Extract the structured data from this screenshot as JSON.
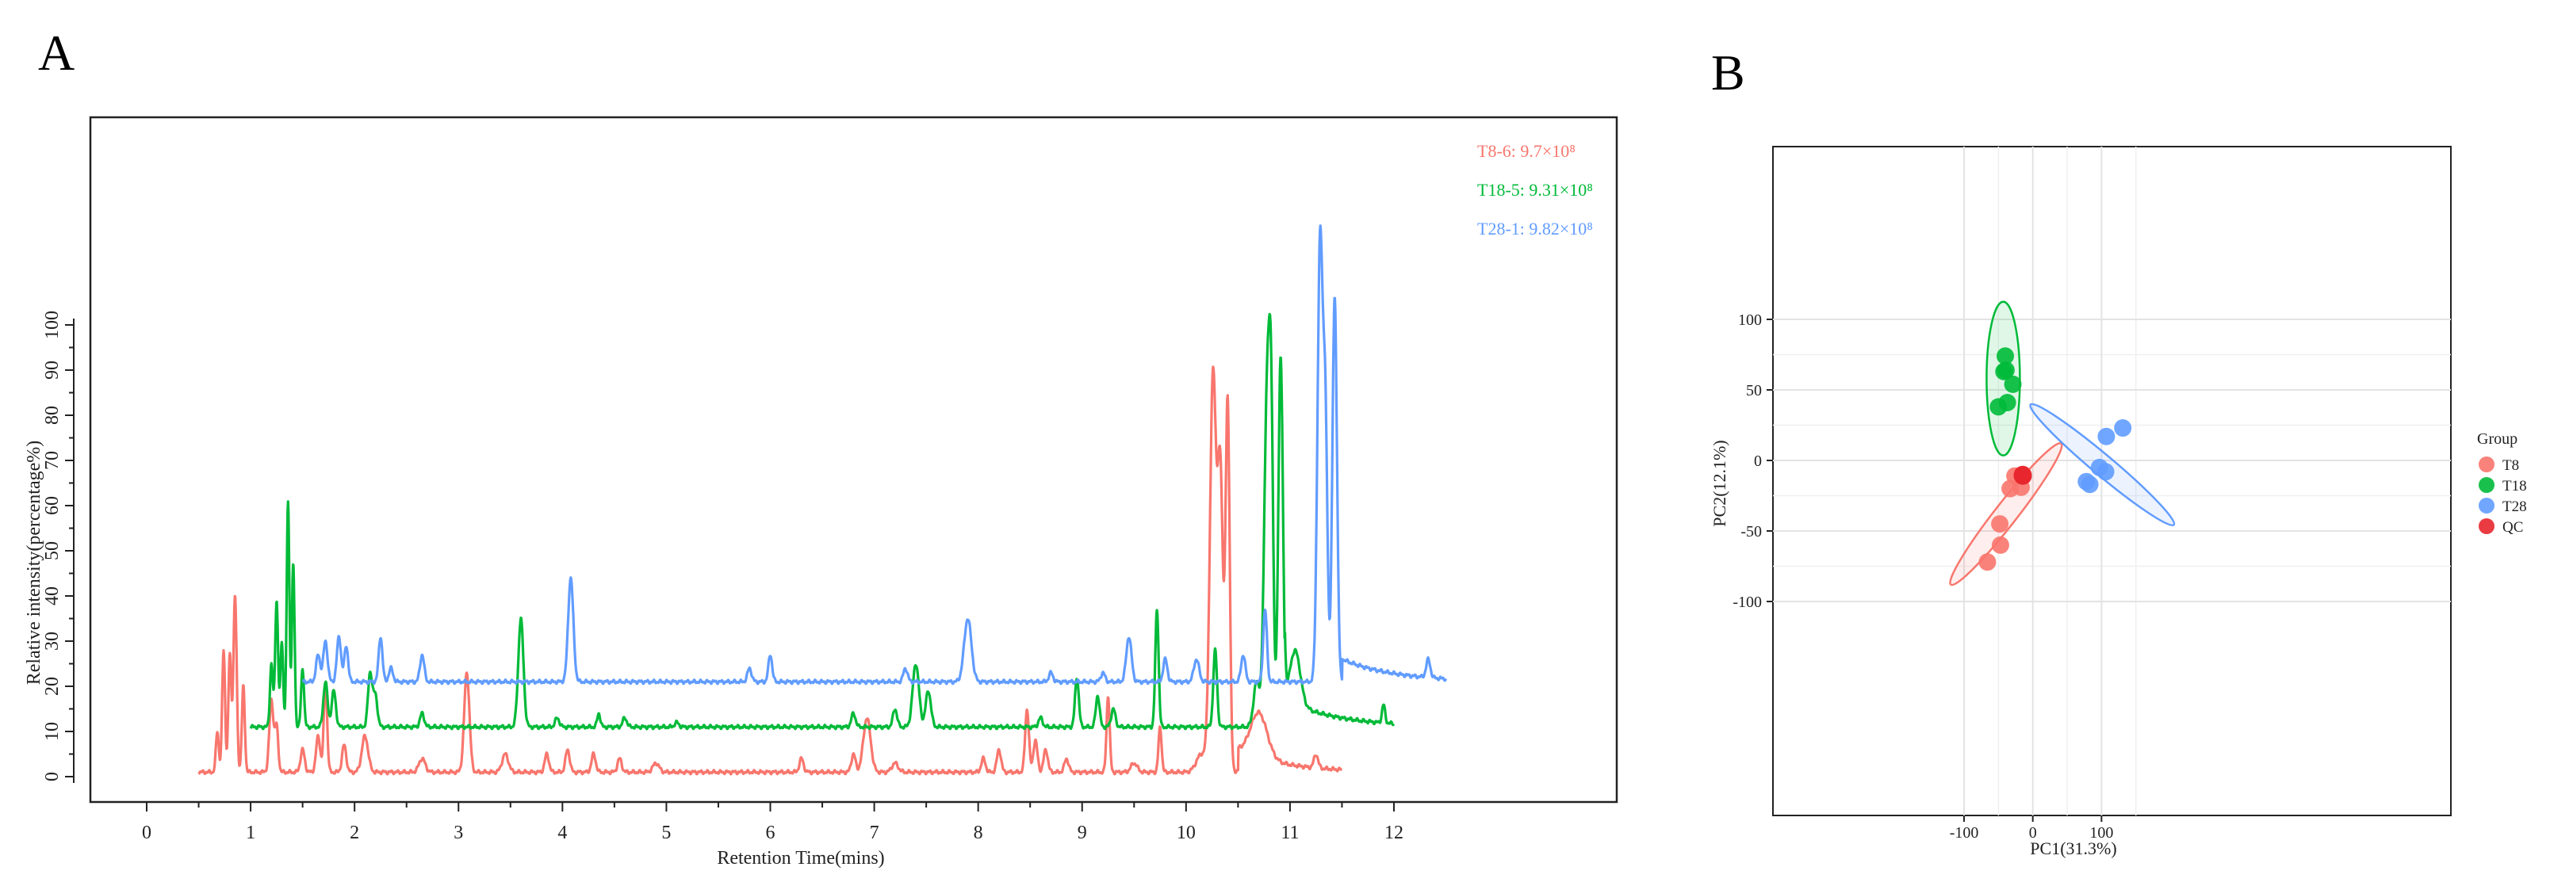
{
  "panels": {
    "a": {
      "letter": "A"
    },
    "b": {
      "letter": "B"
    }
  },
  "chart_data": [
    {
      "type": "line",
      "panel": "A",
      "xlabel": "Retention Time(mins)",
      "ylabel": "Relative intensity(percentage%)",
      "xlim": [
        -1,
        14
      ],
      "ylim": [
        -5,
        148
      ],
      "xticks": [
        0,
        1,
        2,
        3,
        4,
        5,
        6,
        7,
        8,
        9,
        10,
        11,
        12
      ],
      "yticks": [
        0,
        10,
        20,
        30,
        40,
        50,
        60,
        70,
        80,
        90,
        100
      ],
      "grid": false,
      "legend_position": "top-right",
      "series": [
        {
          "name": "T8-6: 9.7×10⁸",
          "color": "#F8766D",
          "baseline": 1,
          "x_start": 0.5,
          "x_end": 11.5,
          "peaks": [
            [
              0.68,
              9,
              0.014
            ],
            [
              0.74,
              27,
              0.014
            ],
            [
              0.8,
              26,
              0.014
            ],
            [
              0.85,
              39,
              0.016
            ],
            [
              0.93,
              19,
              0.014
            ],
            [
              1.2,
              16,
              0.02
            ],
            [
              1.25,
              10,
              0.016
            ],
            [
              1.5,
              5,
              0.02
            ],
            [
              1.65,
              8,
              0.02
            ],
            [
              1.72,
              20,
              0.016
            ],
            [
              1.9,
              6,
              0.02
            ],
            [
              2.1,
              8,
              0.03
            ],
            [
              2.65,
              3,
              0.03
            ],
            [
              3.08,
              22,
              0.025
            ],
            [
              3.45,
              4,
              0.03
            ],
            [
              3.85,
              4,
              0.02
            ],
            [
              4.05,
              5,
              0.02
            ],
            [
              4.3,
              4,
              0.02
            ],
            [
              4.55,
              3,
              0.02
            ],
            [
              4.9,
              2,
              0.03
            ],
            [
              6.3,
              3,
              0.02
            ],
            [
              6.8,
              4,
              0.02
            ],
            [
              6.93,
              12,
              0.035
            ],
            [
              7.2,
              2,
              0.03
            ],
            [
              8.05,
              3,
              0.02
            ],
            [
              8.2,
              5,
              0.02
            ],
            [
              8.47,
              14,
              0.018
            ],
            [
              8.55,
              7,
              0.02
            ],
            [
              8.65,
              5,
              0.02
            ],
            [
              8.85,
              3,
              0.02
            ],
            [
              9.25,
              17,
              0.015
            ],
            [
              9.5,
              2,
              0.03
            ],
            [
              9.75,
              10,
              0.015
            ],
            [
              10.15,
              4,
              0.05
            ],
            [
              10.26,
              88,
              0.03
            ],
            [
              10.33,
              65,
              0.025
            ],
            [
              10.4,
              82,
              0.02
            ],
            [
              10.7,
              10,
              0.08
            ],
            [
              11.25,
              3,
              0.02
            ]
          ],
          "tail": {
            "start": 10.5,
            "end": 11.5,
            "level": 5,
            "decay": 0.45
          }
        },
        {
          "name": "T18-5: 9.31×10⁸",
          "color": "#00BA38",
          "baseline": 11,
          "x_start": 1.0,
          "x_end": 12.0,
          "peaks": [
            [
              1.2,
              14,
              0.014
            ],
            [
              1.25,
              28,
              0.014
            ],
            [
              1.3,
              19,
              0.013
            ],
            [
              1.36,
              50,
              0.013
            ],
            [
              1.41,
              36,
              0.013
            ],
            [
              1.5,
              13,
              0.014
            ],
            [
              1.72,
              10,
              0.02
            ],
            [
              1.8,
              8,
              0.02
            ],
            [
              2.15,
              12,
              0.02
            ],
            [
              2.2,
              7,
              0.02
            ],
            [
              2.65,
              3,
              0.02
            ],
            [
              3.6,
              24,
              0.025
            ],
            [
              3.95,
              2,
              0.02
            ],
            [
              4.35,
              3,
              0.015
            ],
            [
              4.6,
              2,
              0.02
            ],
            [
              5.1,
              1,
              0.02
            ],
            [
              6.8,
              3,
              0.02
            ],
            [
              7.2,
              4,
              0.02
            ],
            [
              7.4,
              14,
              0.03
            ],
            [
              7.52,
              8,
              0.025
            ],
            [
              8.6,
              2,
              0.02
            ],
            [
              8.95,
              11,
              0.018
            ],
            [
              9.15,
              7,
              0.018
            ],
            [
              9.3,
              4,
              0.02
            ],
            [
              9.72,
              26,
              0.016
            ],
            [
              10.28,
              17,
              0.018
            ],
            [
              10.68,
              10,
              0.03
            ],
            [
              10.78,
              74,
              0.028
            ],
            [
              10.82,
              55,
              0.02
            ],
            [
              10.91,
              82,
              0.022
            ],
            [
              11.05,
              12,
              0.05
            ],
            [
              11.9,
              4,
              0.015
            ]
          ],
          "tail": {
            "start": 10.95,
            "end": 12.0,
            "level": 6,
            "decay": 0.5
          }
        },
        {
          "name": "T28-1: 9.82×10⁸",
          "color": "#619CFF",
          "baseline": 21,
          "x_start": 1.5,
          "x_end": 12.5,
          "peaks": [
            [
              1.65,
              6,
              0.02
            ],
            [
              1.72,
              9,
              0.02
            ],
            [
              1.85,
              10,
              0.02
            ],
            [
              1.92,
              8,
              0.018
            ],
            [
              2.25,
              10,
              0.018
            ],
            [
              2.35,
              3,
              0.02
            ],
            [
              2.65,
              6,
              0.02
            ],
            [
              4.08,
              23,
              0.025
            ],
            [
              5.8,
              3,
              0.02
            ],
            [
              6.0,
              6,
              0.018
            ],
            [
              7.3,
              3,
              0.02
            ],
            [
              7.9,
              14,
              0.035
            ],
            [
              8.7,
              2,
              0.02
            ],
            [
              9.2,
              2,
              0.02
            ],
            [
              9.45,
              10,
              0.025
            ],
            [
              9.8,
              5,
              0.02
            ],
            [
              10.1,
              5,
              0.025
            ],
            [
              10.55,
              6,
              0.02
            ],
            [
              10.76,
              16,
              0.018
            ],
            [
              11.29,
              98,
              0.025
            ],
            [
              11.34,
              55,
              0.02
            ],
            [
              11.43,
              85,
              0.022
            ],
            [
              12.33,
              4,
              0.02
            ]
          ],
          "tail": {
            "start": 11.5,
            "end": 12.5,
            "level": 5,
            "decay": 0.5
          }
        }
      ]
    },
    {
      "type": "scatter",
      "panel": "B",
      "xlabel": "PC1(31.3%)",
      "ylabel": "PC2(12.1%)",
      "xlim": [
        -100,
        170
      ],
      "ylim": [
        -125,
        110
      ],
      "xticks": [
        -100,
        0,
        100
      ],
      "yticks": [
        100,
        50,
        0,
        -50,
        -100
      ],
      "grid": true,
      "legend_title": "Group",
      "legend_position": "right",
      "groups": [
        {
          "name": "T8",
          "color": "#F8766D",
          "points": [
            [
              -26,
              -11
            ],
            [
              -33,
              -20
            ],
            [
              -17,
              -19
            ],
            [
              -48,
              -45
            ],
            [
              -47,
              -60
            ],
            [
              -66,
              -72
            ],
            [
              -14,
              -10
            ],
            [
              -16,
              -11
            ]
          ]
        },
        {
          "name": "T18",
          "color": "#00BA38",
          "points": [
            [
              -40,
              74
            ],
            [
              -42,
              63
            ],
            [
              -39,
              64
            ],
            [
              -29,
              54
            ],
            [
              -37,
              41
            ],
            [
              -50,
              38
            ]
          ]
        },
        {
          "name": "T28",
          "color": "#619CFF",
          "points": [
            [
              131,
              23
            ],
            [
              107,
              17
            ],
            [
              97,
              -5
            ],
            [
              106,
              -8
            ],
            [
              78,
              -15
            ],
            [
              83,
              -17
            ]
          ]
        },
        {
          "name": "QC",
          "color": "#E8262D",
          "points": [
            [
              -15,
              -10
            ],
            [
              -14,
              -11
            ],
            [
              -15,
              -11
            ]
          ]
        }
      ],
      "ellipses": [
        {
          "group": "T18",
          "center": [
            -43,
            58
          ],
          "rx": 21,
          "ry": 97,
          "angle": 0
        },
        {
          "group": "T8",
          "center": [
            -39,
            -38
          ],
          "rx": 113,
          "ry": 14,
          "angle": -52
        },
        {
          "group": "T28",
          "center": [
            101,
            -3
          ],
          "rx": 118,
          "ry": 13,
          "angle": 40
        }
      ]
    }
  ]
}
